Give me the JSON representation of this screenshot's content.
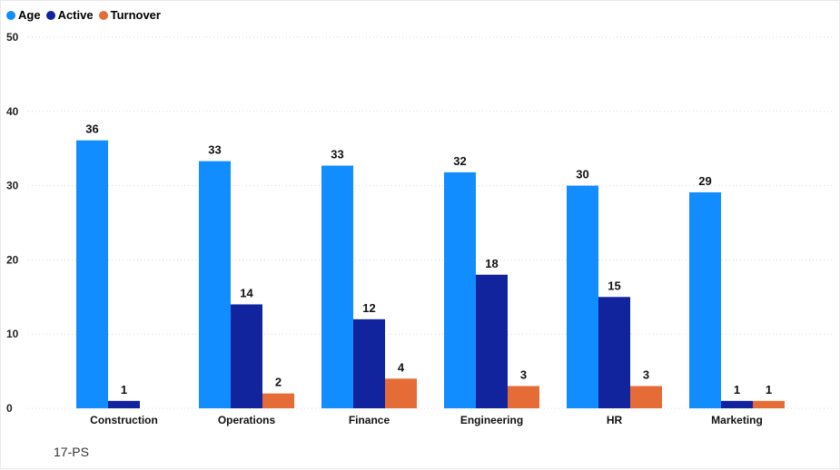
{
  "footer": {
    "label": "17-PS"
  },
  "chart_data": {
    "type": "bar",
    "categories": [
      "Construction",
      "Operations",
      "Finance",
      "Engineering",
      "HR",
      "Marketing"
    ],
    "series": [
      {
        "name": "Age",
        "color": "#118DFF",
        "values": [
          36,
          33,
          33,
          32,
          30,
          29
        ],
        "raw": [
          36.1,
          33.3,
          32.7,
          31.8,
          30,
          29.1
        ]
      },
      {
        "name": "Active",
        "color": "#12239E",
        "values": [
          1,
          14,
          12,
          18,
          15,
          1
        ]
      },
      {
        "name": "Turnover",
        "color": "#E66C37",
        "values": [
          null,
          2,
          4,
          3,
          3,
          1
        ]
      }
    ],
    "ylim": [
      0,
      50
    ],
    "yticks": [
      0,
      10,
      20,
      30,
      40,
      50
    ],
    "grid": true,
    "legend_position": "top-left",
    "data_labels": true
  }
}
